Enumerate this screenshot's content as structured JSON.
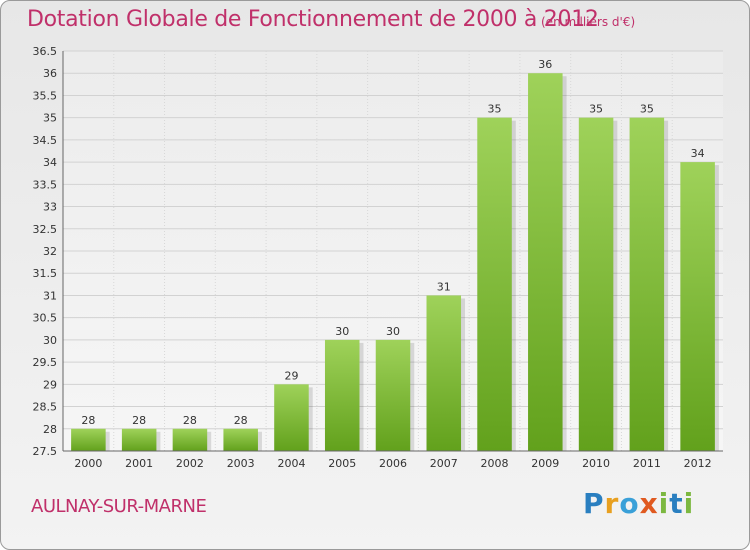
{
  "header": {
    "title": "Dotation Globale de Fonctionnement de 2000 à 2012",
    "unit": "(en milliers d'€)"
  },
  "footer": {
    "city": "AULNAY-SUR-MARNE",
    "brand": [
      "P",
      "r",
      "o",
      "x",
      "i",
      "t",
      "i"
    ]
  },
  "colors": {
    "title": "#c0306a",
    "bar_top": "#9fd25a",
    "bar_bottom": "#62a11c",
    "grid": "#d2d2d2"
  },
  "chart_data": {
    "type": "bar",
    "title": "Dotation Globale de Fonctionnement de 2000 à 2012",
    "unit": "(en milliers d'€)",
    "xlabel": "",
    "ylabel": "",
    "categories": [
      "2000",
      "2001",
      "2002",
      "2003",
      "2004",
      "2005",
      "2006",
      "2007",
      "2008",
      "2009",
      "2010",
      "2011",
      "2012"
    ],
    "values": [
      28,
      28,
      28,
      28,
      29,
      30,
      30,
      31,
      35,
      36,
      35,
      35,
      34
    ],
    "labels": [
      "28",
      "28",
      "28",
      "28",
      "29",
      "30",
      "30",
      "31",
      "35",
      "36",
      "35",
      "35",
      "34"
    ],
    "ylim": [
      27.5,
      36.5
    ],
    "yticks": [
      "27.5",
      "28",
      "28.5",
      "29",
      "29.5",
      "30",
      "30.5",
      "31",
      "31.5",
      "32",
      "32.5",
      "33",
      "33.5",
      "34",
      "34.5",
      "35",
      "35.5",
      "36",
      "36.5"
    ],
    "grid": true,
    "legend": "none"
  }
}
